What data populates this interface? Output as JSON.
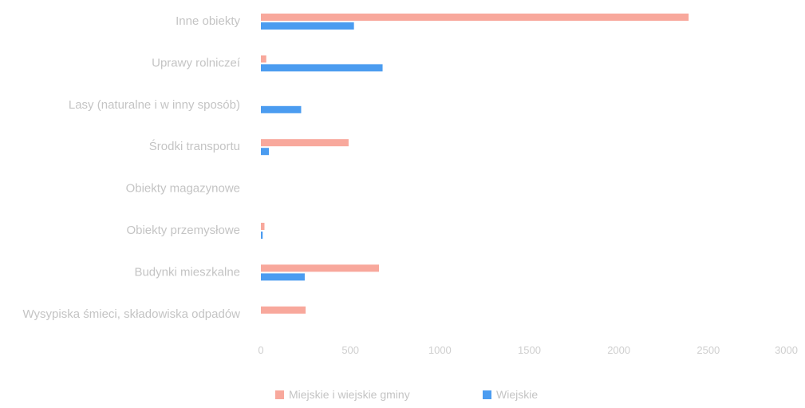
{
  "chart_data": {
    "type": "bar",
    "orientation": "horizontal",
    "categories": [
      "Inne obiekty",
      "Uprawy rolniczeí",
      "Lasy (naturalne i w inny sposób)",
      "Środki transportu",
      "Obiekty magazynowe",
      "Obiekty przemysłowe",
      "Budynki mieszkalne",
      "Wysypiska śmieci, składowiska odpadów"
    ],
    "series": [
      {
        "name": "Miejskie i wiejskie gminy",
        "color": "#f8a89c",
        "values": [
          2390,
          30,
          0,
          490,
          0,
          20,
          660,
          250
        ]
      },
      {
        "name": "Wiejskie",
        "color": "#4b9cf0",
        "values": [
          520,
          680,
          225,
          45,
          0,
          10,
          245,
          0
        ]
      }
    ],
    "xlim": [
      0,
      3000
    ],
    "xticks": [
      "0",
      "500",
      "1000",
      "1500",
      "2000",
      "2500",
      "3000"
    ],
    "grid": false,
    "legend_position": "bottom"
  }
}
